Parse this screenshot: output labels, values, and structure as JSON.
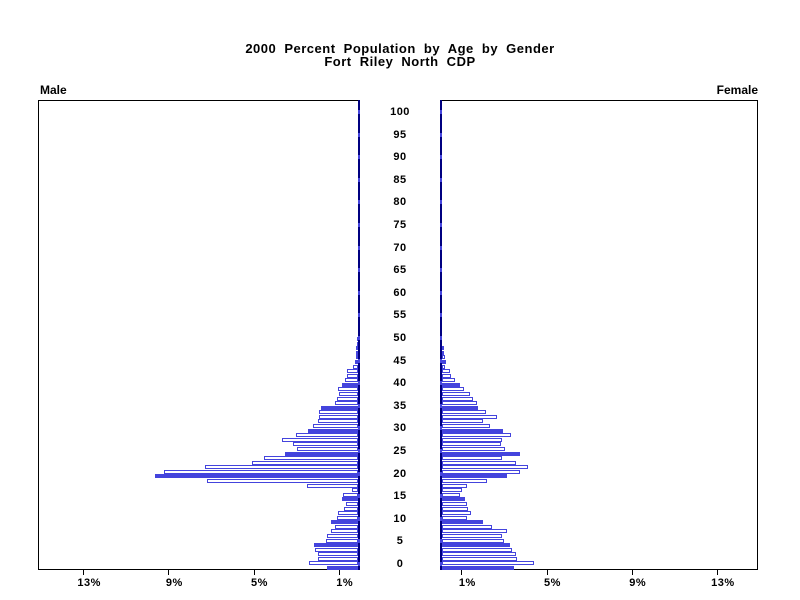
{
  "chart_data": {
    "type": "bar",
    "variant": "population-pyramid",
    "title_line1": "2000 Percent Population by Age by Gender",
    "title_line2": "Fort Riley North CDP",
    "left_panel_label": "Male",
    "right_panel_label": "Female",
    "age_axis_tick_labels": [
      "0",
      "5",
      "10",
      "15",
      "20",
      "25",
      "30",
      "35",
      "40",
      "45",
      "50",
      "55",
      "60",
      "65",
      "70",
      "75",
      "80",
      "85",
      "90",
      "95",
      "100"
    ],
    "percent_axis": {
      "male_tick_labels": [
        "13%",
        "9%",
        "5%",
        "1%"
      ],
      "male_tick_values": [
        13,
        9,
        5,
        1
      ],
      "female_tick_labels": [
        "1%",
        "5%",
        "9%",
        "13%"
      ],
      "female_tick_values": [
        1,
        5,
        9,
        13
      ],
      "xlim_percent": [
        0,
        15
      ]
    },
    "highlight_rule": "bars at ages divisible by 5 are solid filled",
    "filled_every": 5,
    "ages": [
      0,
      1,
      2,
      3,
      4,
      5,
      6,
      7,
      8,
      9,
      10,
      11,
      12,
      13,
      14,
      15,
      16,
      17,
      18,
      19,
      20,
      21,
      22,
      23,
      24,
      25,
      26,
      27,
      28,
      29,
      30,
      31,
      32,
      33,
      34,
      35,
      36,
      37,
      38,
      39,
      40,
      41,
      42,
      43,
      44,
      45,
      46,
      47,
      48,
      49,
      50
    ],
    "ages_above_listed_are_zero": true,
    "series": [
      {
        "name": "Male",
        "values": [
          1.45,
          2.3,
          1.9,
          1.9,
          2.0,
          2.05,
          1.5,
          1.45,
          1.25,
          1.1,
          1.25,
          1.0,
          0.95,
          0.65,
          0.55,
          0.75,
          0.7,
          0.3,
          2.4,
          7.1,
          9.55,
          9.1,
          7.2,
          5.0,
          4.4,
          3.45,
          2.85,
          3.05,
          3.55,
          2.9,
          2.35,
          2.1,
          1.9,
          1.85,
          1.85,
          1.75,
          1.1,
          1.0,
          0.9,
          0.95,
          0.75,
          0.6,
          0.5,
          0.5,
          0.25,
          0.15,
          0.1,
          0.1,
          0.08,
          0.05,
          0.05
        ]
      },
      {
        "name": "Female",
        "values": [
          3.4,
          4.3,
          3.5,
          3.45,
          3.3,
          3.2,
          2.9,
          2.8,
          3.05,
          2.35,
          1.9,
          1.15,
          1.35,
          1.2,
          1.15,
          1.1,
          0.85,
          0.95,
          1.15,
          2.1,
          3.05,
          3.65,
          4.05,
          3.45,
          2.8,
          3.65,
          2.95,
          2.75,
          2.8,
          3.25,
          2.85,
          2.25,
          1.9,
          2.6,
          2.05,
          1.7,
          1.65,
          1.45,
          1.3,
          1.05,
          0.85,
          0.6,
          0.4,
          0.35,
          0.15,
          0.2,
          0.12,
          0.1,
          0.05,
          0,
          0
        ]
      }
    ],
    "colors": {
      "bar_blue": "#4444DD",
      "axis_navy": "#000080",
      "frame_black": "#000000",
      "background": "#FFFFFF"
    }
  }
}
